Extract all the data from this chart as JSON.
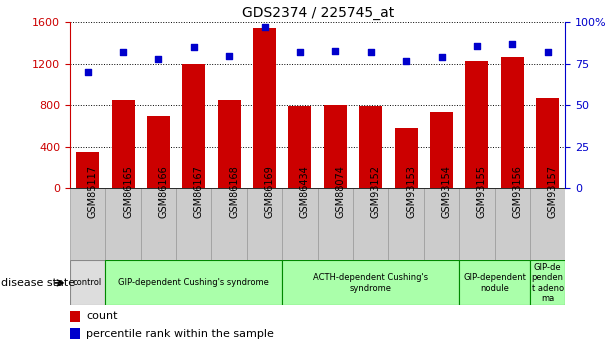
{
  "title": "GDS2374 / 225745_at",
  "samples": [
    "GSM85117",
    "GSM86165",
    "GSM86166",
    "GSM86167",
    "GSM86168",
    "GSM86169",
    "GSM86434",
    "GSM88074",
    "GSM93152",
    "GSM93153",
    "GSM93154",
    "GSM93155",
    "GSM93156",
    "GSM93157"
  ],
  "counts": [
    350,
    850,
    700,
    1200,
    850,
    1550,
    790,
    800,
    790,
    580,
    730,
    1230,
    1270,
    870
  ],
  "percentiles": [
    70,
    82,
    78,
    85,
    80,
    97,
    82,
    83,
    82,
    77,
    79,
    86,
    87,
    82
  ],
  "bar_color": "#cc0000",
  "dot_color": "#0000cc",
  "ylim_left": [
    0,
    1600
  ],
  "ylim_right": [
    0,
    100
  ],
  "yticks_left": [
    0,
    400,
    800,
    1200,
    1600
  ],
  "yticks_right": [
    0,
    25,
    50,
    75,
    100
  ],
  "yticklabels_right": [
    "0",
    "25",
    "50",
    "75",
    "100%"
  ],
  "tick_label_color_left": "#cc0000",
  "tick_label_color_right": "#0000cc",
  "bar_color_left": "#cc0000",
  "bar_color_right": "#0000cc",
  "groups": [
    {
      "label": "control",
      "start": 0,
      "end": 1,
      "color": "#dddddd",
      "border": "#888888"
    },
    {
      "label": "GIP-dependent Cushing's syndrome",
      "start": 1,
      "end": 6,
      "color": "#aaffaa",
      "border": "#008800"
    },
    {
      "label": "ACTH-dependent Cushing's\nsyndrome",
      "start": 6,
      "end": 11,
      "color": "#aaffaa",
      "border": "#008800"
    },
    {
      "label": "GIP-dependent\nnodule",
      "start": 11,
      "end": 13,
      "color": "#aaffaa",
      "border": "#008800"
    },
    {
      "label": "GIP-de\npenden\nt adeno\nma",
      "start": 13,
      "end": 14,
      "color": "#aaffaa",
      "border": "#008800"
    }
  ],
  "xtick_bg_color": "#cccccc",
  "xtick_border_color": "#999999"
}
